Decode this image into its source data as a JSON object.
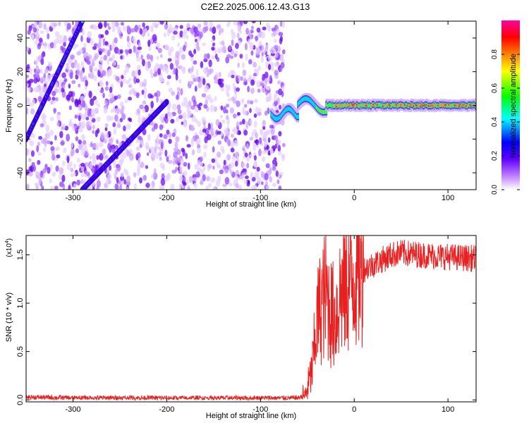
{
  "title": "C2E2.2025.006.12.43.G13",
  "chart_data": [
    {
      "type": "heatmap",
      "title": "C2E2.2025.006.12.43.G13",
      "xlabel": "Height of straight line (km)",
      "ylabel": "Frequency (Hz)",
      "xlim": [
        -350,
        130
      ],
      "ylim": [
        -50,
        50
      ],
      "xticks": [
        -300,
        -200,
        -100,
        0,
        100
      ],
      "yticks": [
        -40,
        -20,
        0,
        20,
        40
      ],
      "colorbar": {
        "label": "Normalized spectral amplitude",
        "range": [
          0,
          1
        ],
        "ticks": [
          "0.0",
          "0.2",
          "0.4",
          "0.6",
          "0.8"
        ],
        "colors": [
          "#ffffff",
          "#8000ff",
          "#0000ff",
          "#00ffff",
          "#00ff00",
          "#ffff00",
          "#ff8000",
          "#ff0000",
          "#ff00a0"
        ]
      },
      "features": {
        "noise_band_x": [
          -350,
          -75
        ],
        "signal_line_1": {
          "x": [
            -350,
            -290
          ],
          "y": [
            -20,
            50
          ]
        },
        "signal_line_2": {
          "x": [
            -290,
            -200
          ],
          "y": [
            -50,
            2
          ]
        },
        "carrier": {
          "x": [
            -88,
            130
          ],
          "y": [
            -8,
            0
          ]
        }
      }
    },
    {
      "type": "line",
      "xlabel": "Height of straight line (km)",
      "ylabel": "SNR (10 * v/v)",
      "y_multiplier": "(x10",
      "y_multiplier_exp": "4",
      "y_multiplier_close": ")",
      "xlim": [
        -350,
        130
      ],
      "ylim": [
        -0.02,
        1.7
      ],
      "xticks": [
        -300,
        -200,
        -100,
        0,
        100
      ],
      "yticks": [
        "0.0",
        "0.5",
        "1.0",
        "1.5"
      ],
      "color": "#e82020",
      "series": [
        {
          "x": [
            -350,
            -300,
            -200,
            -100,
            -60,
            -52,
            -45,
            -40,
            -35,
            -30,
            -25,
            -20,
            -15,
            -10,
            0,
            10,
            20,
            30,
            40,
            50,
            70,
            100,
            130
          ],
          "y": [
            0.03,
            0.02,
            0.02,
            0.02,
            0.02,
            0.05,
            0.3,
            0.8,
            1.0,
            1.1,
            0.9,
            0.85,
            1.1,
            1.15,
            1.3,
            1.35,
            1.4,
            1.45,
            1.5,
            1.52,
            1.5,
            1.48,
            1.46
          ]
        }
      ]
    }
  ]
}
